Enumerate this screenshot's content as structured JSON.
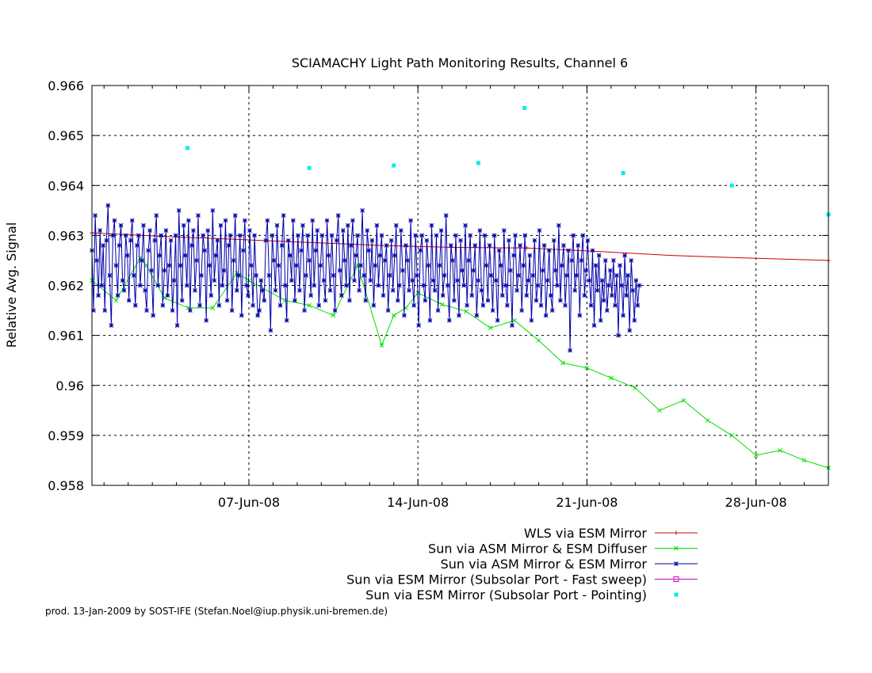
{
  "footer": "prod. 13-Jan-2009 by SOST-IFE (Stefan.Noel@iup.physik.uni-bremen.de)",
  "chart_data": {
    "type": "line",
    "title": "SCIAMACHY Light Path Monitoring Results, Channel 6",
    "xlabel": "",
    "ylabel": "Relative Avg. Signal",
    "x_unit": "date (June 2008)",
    "xlim": [
      "2008-05-31T12:00",
      "2008-07-01T00:00"
    ],
    "ylim": [
      0.958,
      0.966
    ],
    "y_ticks": [
      0.958,
      0.959,
      0.96,
      0.961,
      0.962,
      0.963,
      0.964,
      0.965,
      0.966
    ],
    "y_tick_labels": [
      "0.958",
      "0.959",
      "0.96",
      "0.961",
      "0.962",
      "0.963",
      "0.964",
      "0.965",
      "0.966"
    ],
    "x_ticks": [
      "2008-06-07",
      "2008-06-14",
      "2008-06-21",
      "2008-06-28"
    ],
    "x_tick_labels": [
      "07-Jun-08",
      "14-Jun-08",
      "21-Jun-08",
      "28-Jun-08"
    ],
    "grid": true,
    "legend_position": "below-plot-right",
    "series": [
      {
        "name": "WLS via ESM Mirror",
        "color": "#cc0000",
        "style": "line-points",
        "marker": "plus",
        "x": [
          "2008-05-31T12:00",
          "2008-06-03T12:00",
          "2008-06-06T12:00",
          "2008-06-09T12:00",
          "2008-06-12T12:00",
          "2008-06-15T12:00",
          "2008-06-18T12:00",
          "2008-06-21T12:00",
          "2008-06-24T12:00",
          "2008-06-27T12:00",
          "2008-07-01T00:00"
        ],
        "y": [
          0.96305,
          0.96298,
          0.96292,
          0.96286,
          0.9628,
          0.96276,
          0.96275,
          0.96268,
          0.9626,
          0.96255,
          0.9625
        ]
      },
      {
        "name": "Sun via ASM Mirror & ESM Diffuser",
        "color": "#00dd00",
        "style": "line-points",
        "marker": "cross",
        "x": [
          "2008-05-31T12:00",
          "2008-06-01T12:00",
          "2008-06-02T12:00",
          "2008-06-02T18:00",
          "2008-06-03T12:00",
          "2008-06-04T12:00",
          "2008-06-05T12:00",
          "2008-06-06T12:00",
          "2008-06-07T00:00",
          "2008-06-08T12:00",
          "2008-06-09T12:00",
          "2008-06-10T12:00",
          "2008-06-11T12:00",
          "2008-06-12T12:00",
          "2008-06-13T00:00",
          "2008-06-13T12:00",
          "2008-06-14T00:00",
          "2008-06-15T00:00",
          "2008-06-16T00:00",
          "2008-06-17T00:00",
          "2008-06-18T00:00",
          "2008-06-19T00:00",
          "2008-06-20T00:00",
          "2008-06-21T00:00",
          "2008-06-22T00:00",
          "2008-06-23T00:00",
          "2008-06-24T00:00",
          "2008-06-25T00:00",
          "2008-06-26T00:00",
          "2008-06-27T00:00",
          "2008-06-28T00:00",
          "2008-06-29T00:00",
          "2008-06-30T00:00",
          "2008-07-01T00:00"
        ],
        "y": [
          0.9621,
          0.9617,
          0.96255,
          0.9624,
          0.96175,
          0.96155,
          0.96155,
          0.96225,
          0.9621,
          0.9617,
          0.9616,
          0.9614,
          0.9624,
          0.9608,
          0.9614,
          0.96155,
          0.96185,
          0.96162,
          0.96148,
          0.96115,
          0.9613,
          0.9609,
          0.96045,
          0.96035,
          0.96015,
          0.95995,
          0.9595,
          0.9597,
          0.9593,
          0.959,
          0.9586,
          0.9587,
          0.9585,
          0.95835
        ]
      },
      {
        "name": "Sun via ASM Mirror & ESM Mirror",
        "color": "#0000aa",
        "style": "line-points",
        "marker": "star",
        "x_start": "2008-05-31T12:00",
        "x_step_hours": 1.6,
        "gaps_after_index": [
          100
        ],
        "y": [
          0.9627,
          0.9615,
          0.9634,
          0.9625,
          0.9618,
          0.9631,
          0.962,
          0.9628,
          0.9615,
          0.9629,
          0.9636,
          0.9622,
          0.9612,
          0.963,
          0.9633,
          0.9624,
          0.9618,
          0.9628,
          0.9632,
          0.9621,
          0.9619,
          0.963,
          0.9626,
          0.9617,
          0.9629,
          0.9633,
          0.9622,
          0.9616,
          0.9628,
          0.963,
          0.962,
          0.9625,
          0.9632,
          0.9619,
          0.9615,
          0.9627,
          0.9631,
          0.9623,
          0.9614,
          0.9629,
          0.9634,
          0.962,
          0.9626,
          0.963,
          0.9616,
          0.9623,
          0.9631,
          0.9618,
          0.9624,
          0.9629,
          0.9615,
          0.9621,
          0.963,
          0.9612,
          0.9635,
          0.9624,
          0.9617,
          0.9632,
          0.9626,
          0.962,
          0.9633,
          0.9615,
          0.9628,
          0.9631,
          0.9619,
          0.9625,
          0.9634,
          0.9616,
          0.9622,
          0.963,
          0.9627,
          0.9613,
          0.9631,
          0.9624,
          0.9618,
          0.9635,
          0.9621,
          0.9626,
          0.9629,
          0.9616,
          0.9632,
          0.962,
          0.9623,
          0.9633,
          0.9617,
          0.9628,
          0.963,
          0.9615,
          0.9625,
          0.9634,
          0.9619,
          0.9622,
          0.963,
          0.9614,
          0.9627,
          0.9633,
          0.962,
          0.9618,
          0.9631,
          0.9624,
          0.9616,
          0.963,
          0.9622,
          0.9614,
          0.9615,
          0.9621,
          0.9619,
          0.9617,
          0.9629,
          0.9633,
          0.9622,
          0.9611,
          0.963,
          0.9625,
          0.9619,
          0.9632,
          0.9624,
          0.9616,
          0.9628,
          0.9634,
          0.962,
          0.9613,
          0.9629,
          0.9626,
          0.9621,
          0.9633,
          0.9617,
          0.9624,
          0.963,
          0.9619,
          0.9627,
          0.9632,
          0.9615,
          0.9622,
          0.963,
          0.9625,
          0.9618,
          0.9633,
          0.962,
          0.9627,
          0.9631,
          0.9616,
          0.9624,
          0.963,
          0.9621,
          0.9617,
          0.9633,
          0.9626,
          0.9619,
          0.963,
          0.9622,
          0.9615,
          0.9629,
          0.9634,
          0.9623,
          0.9618,
          0.9631,
          0.9625,
          0.962,
          0.9632,
          0.9617,
          0.9628,
          0.9633,
          0.9621,
          0.9626,
          0.963,
          0.9619,
          0.9624,
          0.9635,
          0.9622,
          0.9617,
          0.9631,
          0.9627,
          0.9621,
          0.9629,
          0.9616,
          0.9624,
          0.9632,
          0.962,
          0.9626,
          0.963,
          0.9618,
          0.9625,
          0.9628,
          0.9615,
          0.9622,
          0.9629,
          0.9619,
          0.9626,
          0.9632,
          0.9617,
          0.962,
          0.9631,
          0.9623,
          0.9614,
          0.9628,
          0.9625,
          0.9619,
          0.9633,
          0.9621,
          0.9616,
          0.963,
          0.9622,
          0.9612,
          0.9627,
          0.963,
          0.962,
          0.9617,
          0.9629,
          0.9624,
          0.9613,
          0.9632,
          0.9621,
          0.9619,
          0.963,
          0.9615,
          0.9624,
          0.9631,
          0.9618,
          0.9622,
          0.9634,
          0.962,
          0.9613,
          0.9628,
          0.9625,
          0.9617,
          0.963,
          0.9621,
          0.9614,
          0.9629,
          0.9623,
          0.962,
          0.9632,
          0.9616,
          0.9625,
          0.963,
          0.9618,
          0.9623,
          0.9628,
          0.9614,
          0.9621,
          0.9631,
          0.9619,
          0.9616,
          0.963,
          0.9624,
          0.9617,
          0.9628,
          0.9622,
          0.9615,
          0.963,
          0.9621,
          0.9613,
          0.9627,
          0.9624,
          0.9618,
          0.9631,
          0.962,
          0.9616,
          0.9629,
          0.9623,
          0.9612,
          0.9626,
          0.963,
          0.9619,
          0.9622,
          0.9628,
          0.9615,
          0.9624,
          0.963,
          0.9618,
          0.9621,
          0.9626,
          0.9613,
          0.9622,
          0.9629,
          0.9617,
          0.962,
          0.9631,
          0.9616,
          0.9623,
          0.9628,
          0.9614,
          0.9621,
          0.9627,
          0.9618,
          0.9615,
          0.9629,
          0.9623,
          0.962,
          0.9632,
          0.9617,
          0.9624,
          0.9628,
          0.9616,
          0.9622,
          0.9627,
          0.9607,
          0.9625,
          0.963,
          0.9619,
          0.9622,
          0.9628,
          0.9614,
          0.9625,
          0.963,
          0.9618,
          0.9623,
          0.9629,
          0.9621,
          0.9616,
          0.9627,
          0.9612,
          0.9624,
          0.9619,
          0.9626,
          0.9613,
          0.9621,
          0.9617,
          0.9625,
          0.9615,
          0.962,
          0.9623,
          0.9618,
          0.9625,
          0.9616,
          0.9622,
          0.961,
          0.9624,
          0.962,
          0.9614,
          0.9626,
          0.9618,
          0.9622,
          0.9611,
          0.9625,
          0.9619,
          0.9613,
          0.9621,
          0.9616,
          0.962
        ]
      },
      {
        "name": "Sun via ESM Mirror (Subsolar Port - Fast sweep)",
        "color": "#cc00cc",
        "style": "line-points",
        "marker": "square",
        "x": [],
        "y": []
      },
      {
        "name": "Sun via ESM Mirror (Subsolar Port - Pointing)",
        "color": "#00eeee",
        "style": "points",
        "marker": "dot",
        "x": [
          "2008-06-04T11:00",
          "2008-06-09T12:00",
          "2008-06-13T00:00",
          "2008-06-16T12:00",
          "2008-06-18T10:00",
          "2008-06-22T12:00",
          "2008-06-27T00:00",
          "2008-07-01T00:00"
        ],
        "y": [
          0.96475,
          0.96435,
          0.9644,
          0.96445,
          0.96555,
          0.96425,
          0.964,
          0.96342
        ]
      }
    ]
  }
}
